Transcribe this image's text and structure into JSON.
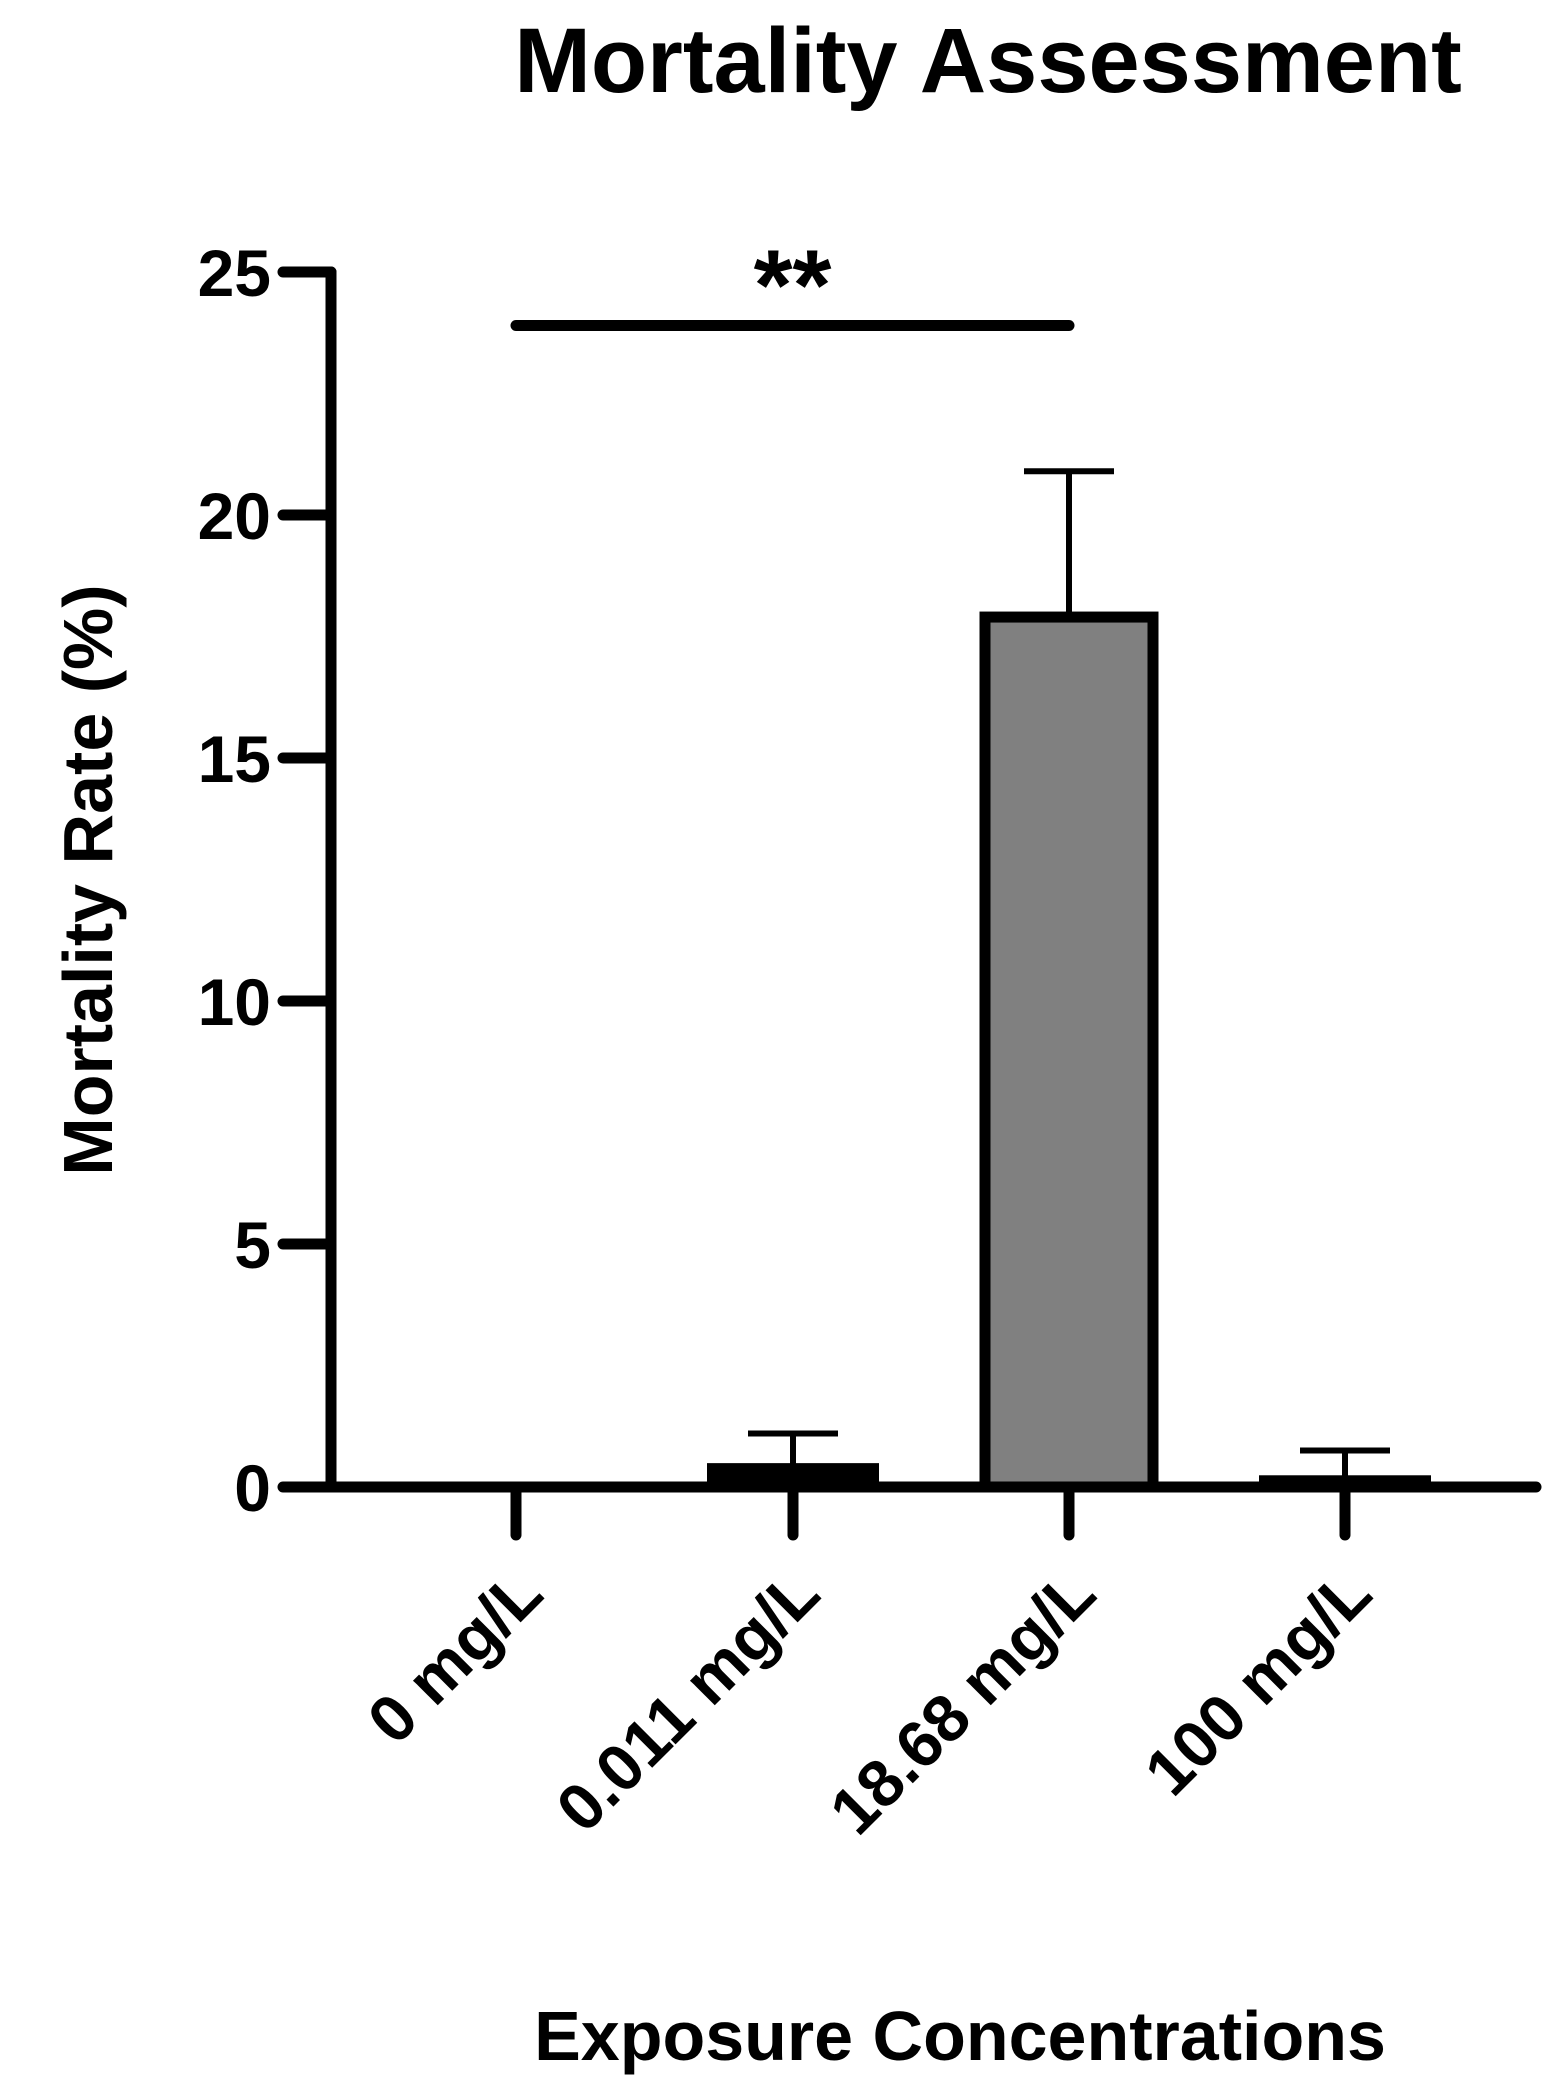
{
  "colors": {
    "bar_fill": "#808080",
    "stroke": "#000000",
    "background": "#ffffff"
  },
  "chart_data": {
    "type": "bar",
    "title": "Mortality Assessment",
    "xlabel": "Exposure Concentrations",
    "ylabel": "Mortality Rate (%)",
    "ylim": [
      0,
      25
    ],
    "yticks": [
      0,
      5,
      10,
      15,
      20,
      25
    ],
    "categories": [
      "0 mg/L",
      "0.011 mg/L",
      "18.68 mg/L",
      "100 mg/L"
    ],
    "values": [
      0,
      0.45,
      17.9,
      0.2
    ],
    "errors": [
      0,
      0.65,
      3.0,
      0.55
    ],
    "significance": {
      "from": "0 mg/L",
      "to": "18.68 mg/L",
      "y": 23.9,
      "label": "**"
    },
    "grid": false,
    "legend": "none"
  }
}
